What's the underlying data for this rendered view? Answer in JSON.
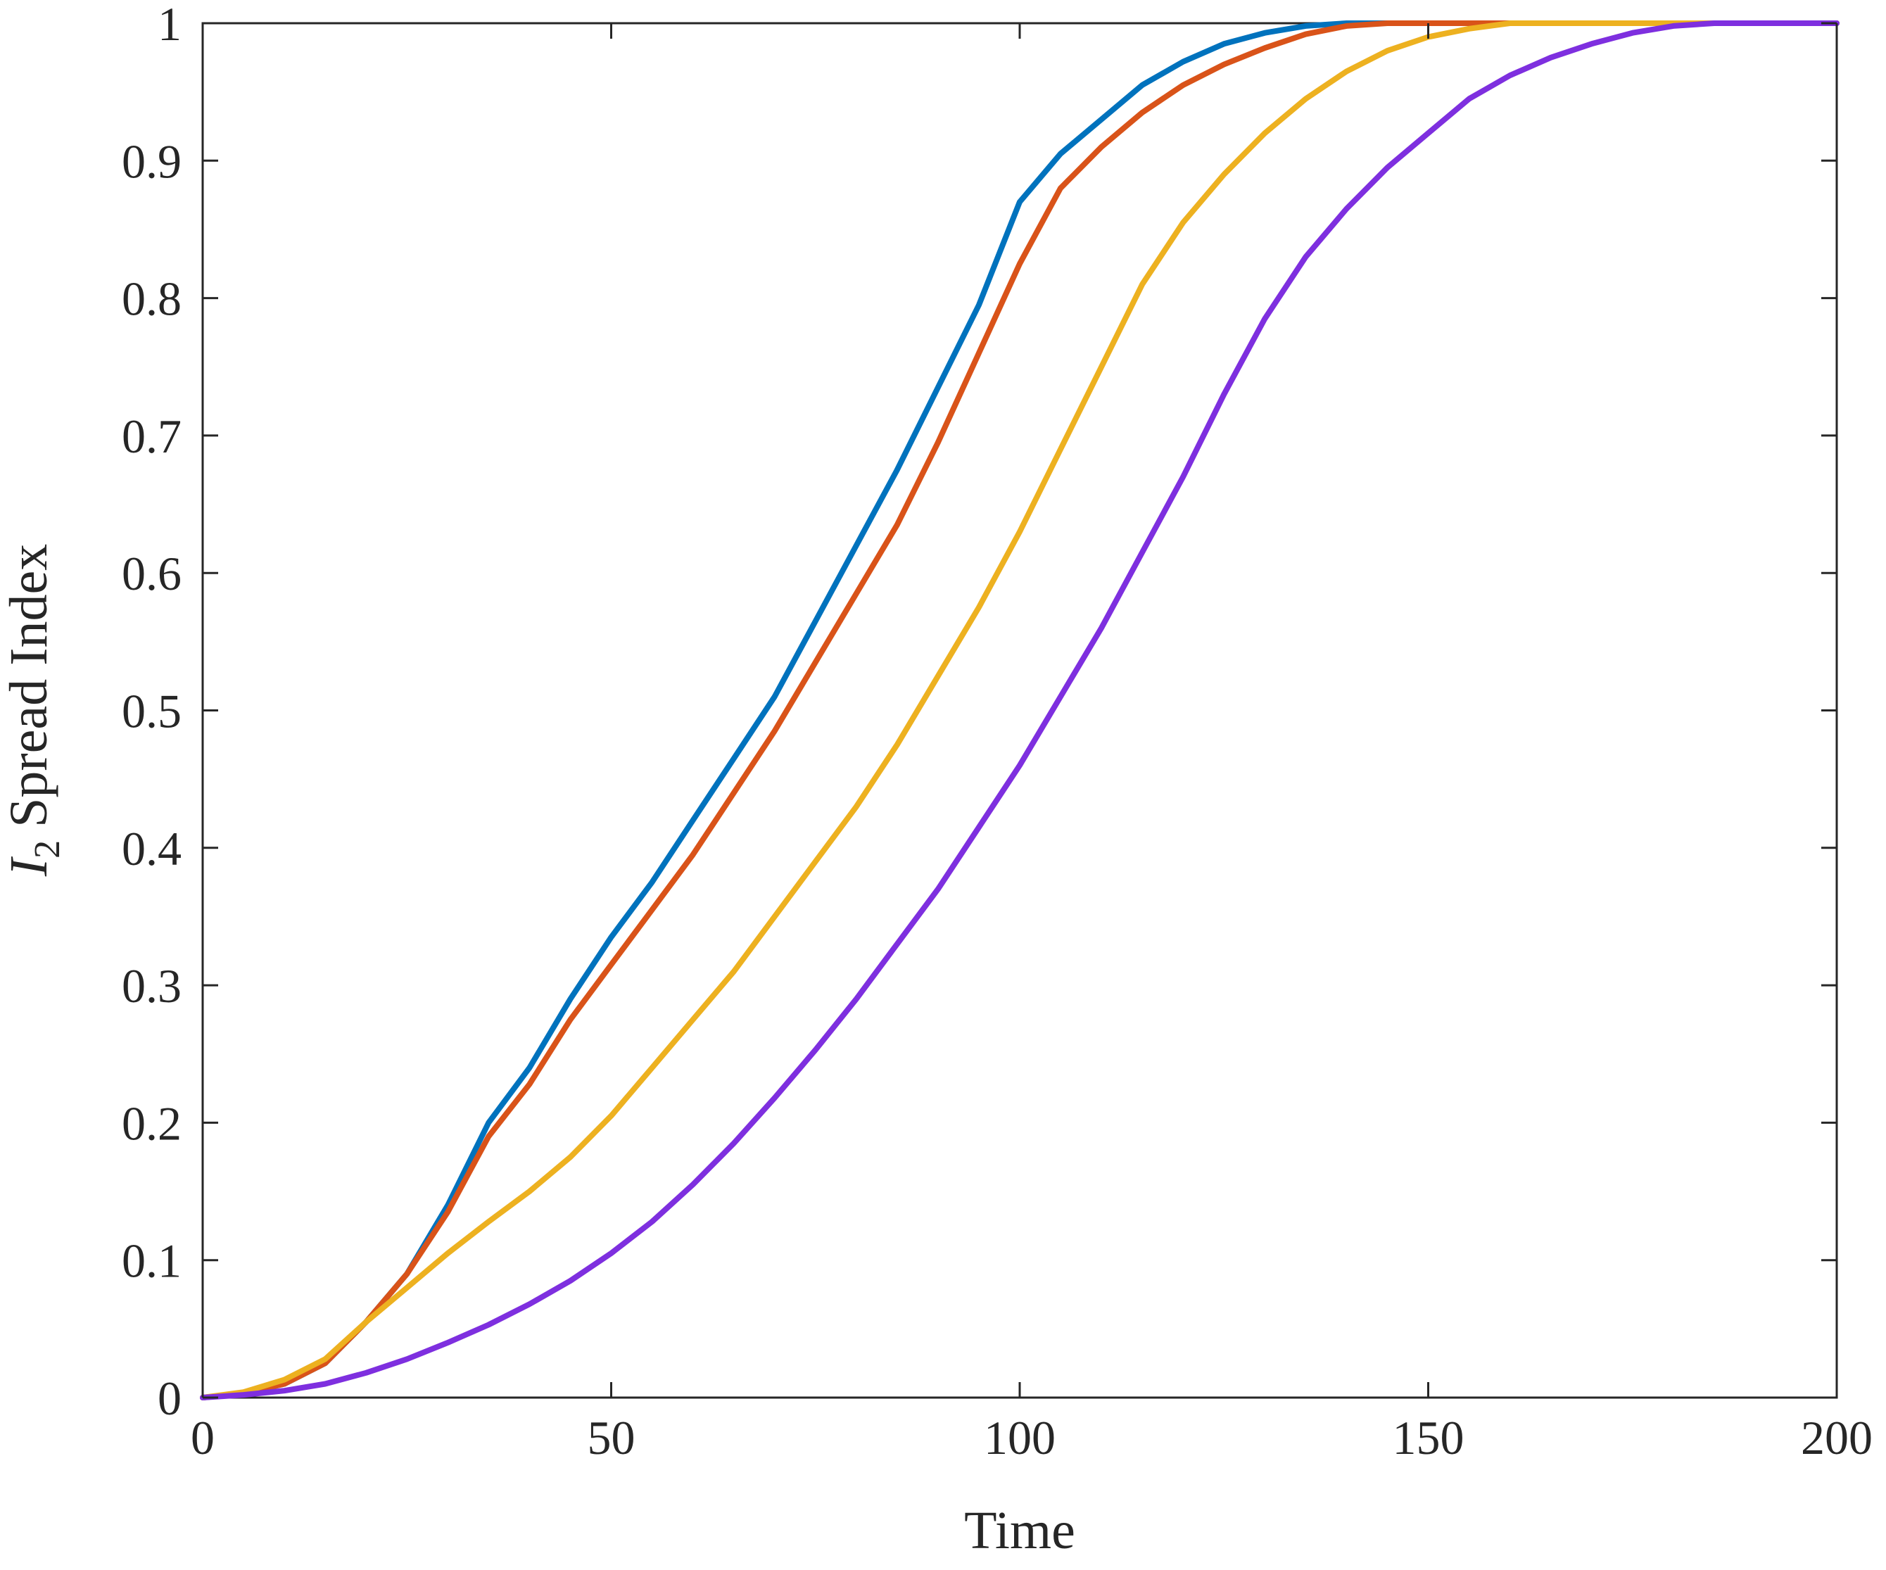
{
  "chart_data": {
    "type": "line",
    "title": "",
    "xlabel": "Time",
    "ylabel": {
      "symbol": "I",
      "subscript": "2",
      "text": "Spread Index"
    },
    "xlim": [
      0,
      200
    ],
    "ylim": [
      0,
      1
    ],
    "xticks": [
      "0",
      "50",
      "100",
      "150",
      "200"
    ],
    "yticks": [
      "0",
      "0.1",
      "0.2",
      "0.3",
      "0.4",
      "0.5",
      "0.6",
      "0.7",
      "0.8",
      "0.9",
      "1"
    ],
    "grid": false,
    "legend": null,
    "series": [
      {
        "color": "#0072BD",
        "x": [
          0,
          5,
          10,
          15,
          20,
          25,
          30,
          35,
          40,
          45,
          50,
          55,
          60,
          65,
          70,
          75,
          80,
          85,
          90,
          95,
          100,
          105,
          110,
          115,
          120,
          125,
          130,
          135,
          140,
          145,
          150,
          160,
          170,
          180,
          190,
          200
        ],
        "y": [
          0,
          0.003,
          0.01,
          0.025,
          0.055,
          0.09,
          0.14,
          0.2,
          0.24,
          0.29,
          0.335,
          0.375,
          0.42,
          0.465,
          0.51,
          0.565,
          0.62,
          0.675,
          0.735,
          0.795,
          0.87,
          0.905,
          0.93,
          0.955,
          0.972,
          0.985,
          0.993,
          0.998,
          1,
          1,
          1,
          1,
          1,
          1,
          1,
          1
        ]
      },
      {
        "color": "#D95319",
        "x": [
          0,
          5,
          10,
          15,
          20,
          25,
          30,
          35,
          40,
          45,
          50,
          55,
          60,
          65,
          70,
          75,
          80,
          85,
          90,
          95,
          100,
          105,
          110,
          115,
          120,
          125,
          130,
          135,
          140,
          145,
          150,
          160,
          170,
          180,
          190,
          200
        ],
        "y": [
          0,
          0.003,
          0.01,
          0.025,
          0.055,
          0.09,
          0.135,
          0.19,
          0.228,
          0.275,
          0.315,
          0.355,
          0.395,
          0.44,
          0.485,
          0.535,
          0.585,
          0.635,
          0.695,
          0.76,
          0.825,
          0.88,
          0.91,
          0.935,
          0.955,
          0.97,
          0.982,
          0.992,
          0.998,
          1,
          1,
          1,
          1,
          1,
          1,
          1
        ]
      },
      {
        "color": "#EDB120",
        "x": [
          0,
          5,
          10,
          15,
          20,
          25,
          30,
          35,
          40,
          45,
          50,
          55,
          60,
          65,
          70,
          75,
          80,
          85,
          90,
          95,
          100,
          105,
          110,
          115,
          120,
          125,
          130,
          135,
          140,
          145,
          150,
          155,
          160,
          170,
          180,
          190,
          200
        ],
        "y": [
          0,
          0.004,
          0.013,
          0.028,
          0.055,
          0.08,
          0.105,
          0.128,
          0.15,
          0.175,
          0.205,
          0.24,
          0.275,
          0.31,
          0.35,
          0.39,
          0.43,
          0.475,
          0.525,
          0.575,
          0.63,
          0.69,
          0.75,
          0.81,
          0.855,
          0.89,
          0.92,
          0.945,
          0.965,
          0.98,
          0.99,
          0.996,
          1,
          1,
          1,
          1,
          1
        ]
      },
      {
        "color": "#7E2FDF",
        "x": [
          0,
          5,
          10,
          15,
          20,
          25,
          30,
          35,
          40,
          45,
          50,
          55,
          60,
          65,
          70,
          75,
          80,
          85,
          90,
          95,
          100,
          105,
          110,
          115,
          120,
          125,
          130,
          135,
          140,
          145,
          150,
          155,
          160,
          165,
          170,
          175,
          180,
          185,
          190,
          200
        ],
        "y": [
          0,
          0.002,
          0.005,
          0.01,
          0.018,
          0.028,
          0.04,
          0.053,
          0.068,
          0.085,
          0.105,
          0.128,
          0.155,
          0.185,
          0.218,
          0.253,
          0.29,
          0.33,
          0.37,
          0.415,
          0.46,
          0.51,
          0.56,
          0.615,
          0.67,
          0.73,
          0.785,
          0.83,
          0.865,
          0.895,
          0.92,
          0.945,
          0.962,
          0.975,
          0.985,
          0.993,
          0.998,
          1,
          1,
          1
        ]
      }
    ]
  }
}
